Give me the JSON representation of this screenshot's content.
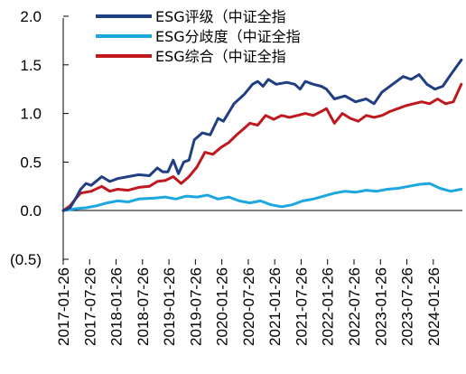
{
  "chart_data": {
    "type": "line",
    "title": "",
    "xlabel": "",
    "ylabel": "",
    "ylim": [
      -0.5,
      2.0
    ],
    "y_ticks": [
      "2.0",
      "1.5",
      "1.0",
      "0.5",
      "0.0",
      "(0.5)"
    ],
    "y_tick_values": [
      2.0,
      1.5,
      1.0,
      0.5,
      0.0,
      -0.5
    ],
    "x_ticks": [
      "2017-01-26",
      "2017-07-26",
      "2018-01-26",
      "2018-07-26",
      "2019-01-26",
      "2019-07-26",
      "2020-01-26",
      "2020-07-26",
      "2021-01-26",
      "2021-07-26",
      "2022-01-26",
      "2022-07-26",
      "2023-01-26",
      "2023-07-26",
      "2024-01-26"
    ],
    "x_tick_values": [
      2017.07,
      2017.57,
      2018.07,
      2018.57,
      2019.07,
      2019.57,
      2020.07,
      2020.57,
      2021.07,
      2021.57,
      2022.07,
      2022.57,
      2023.07,
      2023.57,
      2024.07
    ],
    "xlim": [
      2017.07,
      2024.62
    ],
    "grid": false,
    "legend_position": "top-left",
    "series": [
      {
        "name": "ESG评级（中证全指",
        "color": "#1f3f82",
        "x": [
          2017.07,
          2017.2,
          2017.3,
          2017.4,
          2017.5,
          2017.6,
          2017.8,
          2017.95,
          2018.1,
          2018.3,
          2018.5,
          2018.7,
          2018.85,
          2018.95,
          2019.05,
          2019.15,
          2019.25,
          2019.35,
          2019.45,
          2019.55,
          2019.7,
          2019.85,
          2020.0,
          2020.1,
          2020.3,
          2020.5,
          2020.65,
          2020.75,
          2020.85,
          2020.95,
          2021.1,
          2021.3,
          2021.45,
          2021.55,
          2021.65,
          2021.8,
          2021.95,
          2022.05,
          2022.2,
          2022.4,
          2022.6,
          2022.8,
          2022.95,
          2023.1,
          2023.3,
          2023.5,
          2023.65,
          2023.8,
          2023.95,
          2024.1,
          2024.25,
          2024.4,
          2024.6
        ],
        "values": [
          0.0,
          0.03,
          0.12,
          0.22,
          0.28,
          0.26,
          0.35,
          0.3,
          0.33,
          0.35,
          0.37,
          0.36,
          0.44,
          0.4,
          0.4,
          0.52,
          0.38,
          0.5,
          0.52,
          0.73,
          0.8,
          0.78,
          0.95,
          0.92,
          1.1,
          1.2,
          1.3,
          1.33,
          1.28,
          1.35,
          1.3,
          1.32,
          1.3,
          1.25,
          1.33,
          1.3,
          1.28,
          1.25,
          1.15,
          1.18,
          1.12,
          1.15,
          1.1,
          1.22,
          1.3,
          1.38,
          1.35,
          1.4,
          1.3,
          1.25,
          1.28,
          1.4,
          1.55
        ]
      },
      {
        "name": "ESG分歧度（中证全指",
        "color": "#1da7e0",
        "x": [
          2017.07,
          2017.3,
          2017.5,
          2017.7,
          2017.9,
          2018.1,
          2018.3,
          2018.5,
          2018.8,
          2019.0,
          2019.2,
          2019.4,
          2019.6,
          2019.8,
          2020.0,
          2020.2,
          2020.4,
          2020.6,
          2020.8,
          2021.0,
          2021.2,
          2021.4,
          2021.6,
          2021.8,
          2022.0,
          2022.2,
          2022.4,
          2022.6,
          2022.8,
          2023.0,
          2023.2,
          2023.4,
          2023.6,
          2023.8,
          2024.0,
          2024.2,
          2024.4,
          2024.6
        ],
        "values": [
          0.0,
          0.02,
          0.03,
          0.05,
          0.08,
          0.1,
          0.09,
          0.12,
          0.13,
          0.14,
          0.12,
          0.15,
          0.14,
          0.16,
          0.12,
          0.14,
          0.1,
          0.08,
          0.1,
          0.06,
          0.04,
          0.06,
          0.1,
          0.12,
          0.15,
          0.18,
          0.2,
          0.19,
          0.21,
          0.2,
          0.22,
          0.23,
          0.25,
          0.27,
          0.28,
          0.23,
          0.2,
          0.22
        ]
      },
      {
        "name": "ESG综合（中证全指",
        "color": "#c0181f",
        "x": [
          2017.07,
          2017.2,
          2017.3,
          2017.4,
          2017.6,
          2017.8,
          2017.95,
          2018.1,
          2018.3,
          2018.5,
          2018.7,
          2018.85,
          2019.0,
          2019.15,
          2019.3,
          2019.45,
          2019.6,
          2019.75,
          2019.9,
          2020.05,
          2020.2,
          2020.35,
          2020.5,
          2020.6,
          2020.75,
          2020.9,
          2021.05,
          2021.2,
          2021.35,
          2021.5,
          2021.65,
          2021.8,
          2021.95,
          2022.05,
          2022.2,
          2022.35,
          2022.5,
          2022.65,
          2022.8,
          2022.95,
          2023.1,
          2023.25,
          2023.4,
          2023.55,
          2023.7,
          2023.85,
          2024.0,
          2024.15,
          2024.3,
          2024.45,
          2024.6
        ],
        "values": [
          0.0,
          0.05,
          0.12,
          0.18,
          0.2,
          0.25,
          0.2,
          0.22,
          0.21,
          0.24,
          0.25,
          0.3,
          0.31,
          0.35,
          0.28,
          0.35,
          0.45,
          0.6,
          0.58,
          0.65,
          0.7,
          0.78,
          0.85,
          0.9,
          0.88,
          0.98,
          0.94,
          0.98,
          0.96,
          0.98,
          1.0,
          0.98,
          1.02,
          1.05,
          0.9,
          1.0,
          0.95,
          0.92,
          0.98,
          0.96,
          0.98,
          1.02,
          1.05,
          1.08,
          1.1,
          1.12,
          1.1,
          1.15,
          1.1,
          1.12,
          1.3
        ]
      }
    ]
  }
}
